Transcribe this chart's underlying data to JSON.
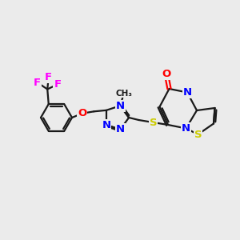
{
  "background_color": "#ebebeb",
  "bond_color": "#1a1a1a",
  "bond_width": 1.6,
  "atom_colors": {
    "N": "#0000ff",
    "O": "#ff0000",
    "S": "#cccc00",
    "F": "#ff00ff",
    "C": "#1a1a1a"
  },
  "font_size": 9.5,
  "font_size_small": 7.5
}
